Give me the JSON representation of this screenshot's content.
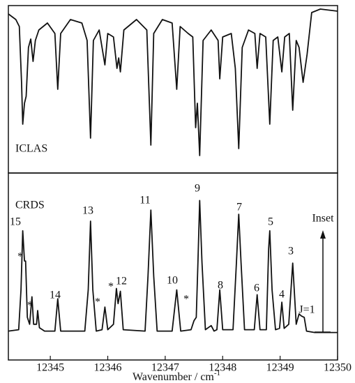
{
  "chart_data": [
    {
      "type": "line",
      "label": "ICLAS",
      "color": "#111111",
      "x": [
        12344.27,
        12344.4,
        12344.46,
        12344.5,
        12344.52,
        12344.55,
        12344.58,
        12344.62,
        12344.66,
        12344.7,
        12344.74,
        12344.8,
        12344.95,
        12345.08,
        12345.13,
        12345.18,
        12345.35,
        12345.55,
        12345.64,
        12345.7,
        12345.75,
        12345.85,
        12345.95,
        12346.0,
        12346.1,
        12346.16,
        12346.19,
        12346.22,
        12346.28,
        12346.5,
        12346.68,
        12346.75,
        12346.8,
        12346.95,
        12347.12,
        12347.2,
        12347.26,
        12347.4,
        12347.48,
        12347.53,
        12347.56,
        12347.6,
        12347.66,
        12347.8,
        12347.92,
        12347.95,
        12348.0,
        12348.15,
        12348.22,
        12348.28,
        12348.34,
        12348.45,
        12348.56,
        12348.6,
        12348.65,
        12348.75,
        12348.82,
        12348.88,
        12348.96,
        12349.03,
        12349.08,
        12349.16,
        12349.22,
        12349.28,
        12349.33,
        12349.4,
        12349.47,
        12349.55,
        12349.7,
        12350
      ],
      "y": [
        228,
        220,
        210,
        130,
        70,
        100,
        110,
        180,
        192,
        160,
        190,
        205,
        215,
        200,
        120,
        200,
        220,
        215,
        190,
        50,
        190,
        205,
        155,
        200,
        195,
        150,
        165,
        145,
        205,
        220,
        205,
        40,
        200,
        220,
        215,
        120,
        210,
        200,
        195,
        65,
        100,
        25,
        190,
        205,
        190,
        135,
        195,
        200,
        150,
        35,
        180,
        205,
        200,
        150,
        200,
        195,
        70,
        190,
        195,
        145,
        195,
        200,
        90,
        190,
        180,
        130,
        170,
        230,
        235,
        232
      ],
      "xlim": [
        12344.27,
        12350
      ],
      "ylim": [
        0,
        240
      ]
    },
    {
      "type": "line",
      "label": "CRDS",
      "color": "#111111",
      "x": [
        12344.27,
        12344.45,
        12344.49,
        12344.52,
        12344.55,
        12344.57,
        12344.6,
        12344.64,
        12344.68,
        12344.71,
        12344.76,
        12344.78,
        12344.81,
        12344.9,
        12345.08,
        12345.13,
        12345.18,
        12345.6,
        12345.66,
        12345.7,
        12345.74,
        12345.8,
        12345.9,
        12345.95,
        12346.0,
        12346.1,
        12346.15,
        12346.18,
        12346.22,
        12346.27,
        12346.65,
        12346.7,
        12346.75,
        12346.8,
        12346.86,
        12347.12,
        12347.2,
        12347.27,
        12347.45,
        12347.5,
        12347.54,
        12347.57,
        12347.6,
        12347.64,
        12347.7,
        12347.8,
        12347.85,
        12347.9,
        12347.95,
        12348.0,
        12348.18,
        12348.24,
        12348.28,
        12348.32,
        12348.38,
        12348.55,
        12348.6,
        12348.65,
        12348.76,
        12348.8,
        12348.82,
        12348.86,
        12348.92,
        12348.99,
        12349.03,
        12349.07,
        12349.15,
        12349.22,
        12349.28,
        12349.33,
        12349.37,
        12349.42,
        12349.46,
        12349.6,
        12350
      ],
      "y": [
        42,
        44,
        102,
        188,
        144,
        144,
        62,
        52,
        92,
        52,
        52,
        72,
        47,
        42,
        42,
        89,
        42,
        42,
        102,
        202,
        102,
        42,
        44,
        77,
        44,
        52,
        104,
        82,
        100,
        44,
        42,
        122,
        218,
        122,
        42,
        42,
        102,
        42,
        44,
        57,
        62,
        142,
        232,
        142,
        44,
        50,
        42,
        44,
        102,
        44,
        44,
        142,
        212,
        142,
        44,
        44,
        95,
        44,
        44,
        162,
        188,
        102,
        44,
        46,
        84,
        46,
        52,
        141,
        52,
        67,
        64,
        62,
        42,
        40,
        40
      ],
      "xlim": [
        12344.27,
        12350
      ],
      "ylim": [
        0,
        272
      ],
      "xticks": [
        12345,
        12346,
        12347,
        12348,
        12349,
        12350
      ],
      "x_label": {
        "text": "Wavenumber / cm",
        "superscript": "-1"
      },
      "annotations": [
        "15",
        "*",
        "*",
        "14",
        "13",
        "*",
        "*",
        "12",
        "11",
        "10",
        "*",
        "9",
        "8",
        "7",
        "6",
        "5",
        "4",
        "3",
        "J=1",
        "Inset"
      ]
    }
  ]
}
